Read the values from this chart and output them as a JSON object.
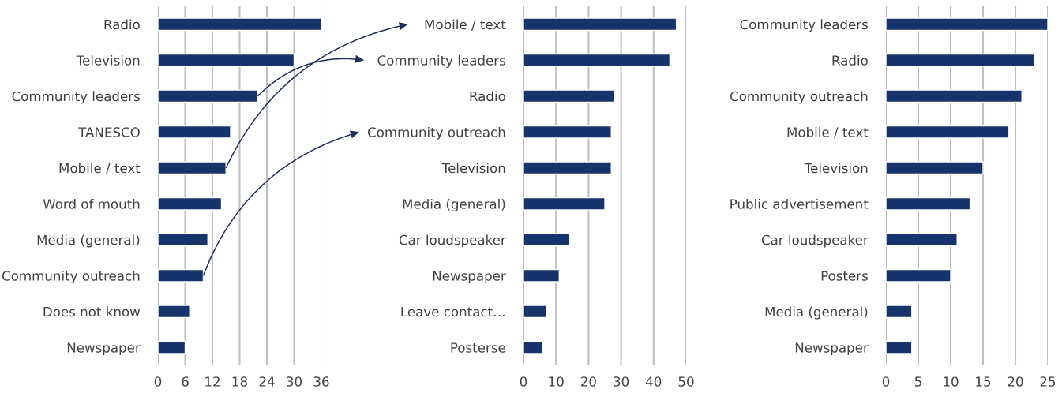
{
  "chart_data": [
    {
      "type": "bar",
      "orientation": "horizontal",
      "categories": [
        "Radio",
        "Television",
        "Community leaders",
        "TANESCO",
        "Mobile / text",
        "Word of mouth",
        "Media (general)",
        "Community outreach",
        "Does not know",
        "Newspaper"
      ],
      "values": [
        36,
        30,
        22,
        16,
        15,
        14,
        11,
        10,
        7,
        6
      ],
      "color": "#17336b",
      "xlim": [
        0,
        36
      ],
      "xticks": [
        0,
        6,
        12,
        18,
        24,
        30,
        36
      ],
      "grid": "x"
    },
    {
      "type": "bar",
      "orientation": "horizontal",
      "categories": [
        "Mobile / text",
        "Community leaders",
        "Radio",
        "Community outreach",
        "Television",
        "Media (general)",
        "Car loudspeaker",
        "Newspaper",
        "Leave contact…",
        "Posterse"
      ],
      "values": [
        47,
        45,
        28,
        27,
        27,
        25,
        14,
        11,
        7,
        6
      ],
      "color": "#17336b",
      "xlim": [
        0,
        50
      ],
      "xticks": [
        0,
        10,
        20,
        30,
        40,
        50
      ],
      "grid": "x"
    },
    {
      "type": "bar",
      "orientation": "horizontal",
      "categories": [
        "Community leaders",
        "Radio",
        "Community outreach",
        "Mobile / text",
        "Television",
        "Public advertisement",
        "Car loudspeaker",
        "Posters",
        "Media (general)",
        "Newspaper"
      ],
      "values": [
        25,
        23,
        21,
        19,
        15,
        13,
        11,
        10,
        4,
        4
      ],
      "color": "#17336b",
      "xlim": [
        0,
        25
      ],
      "xticks": [
        0,
        5,
        10,
        15,
        20,
        25
      ],
      "grid": "x"
    }
  ]
}
